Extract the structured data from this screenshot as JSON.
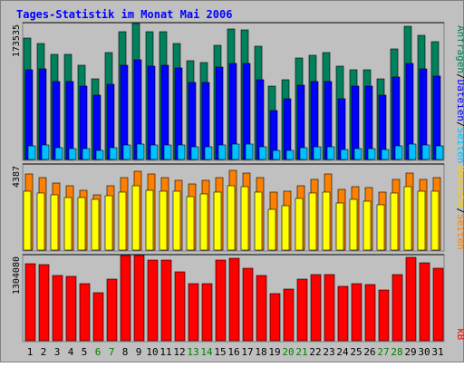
{
  "title": "Tages-Statistik im Monat Mai 2006",
  "colors": {
    "background": "#c0c0c0",
    "title": "#0000ff",
    "anfragen": "#00805c",
    "dateien": "#0000ff",
    "seiten": "#00c0ff",
    "besuche": "#ffff00",
    "seiten_mid": "#ff8000",
    "kb": "#ff0000",
    "weekend_label": "#008000"
  },
  "right_labels": {
    "top": [
      {
        "text": "Anfragen",
        "color": "#00805c"
      },
      {
        "text": "/",
        "color": "#000000"
      },
      {
        "text": "Dateien",
        "color": "#0000ff"
      },
      {
        "text": "/",
        "color": "#000000"
      },
      {
        "text": "Seiten",
        "color": "#00c0ff"
      }
    ],
    "middle": [
      {
        "text": "Besuche",
        "color": "#ffcc00"
      },
      {
        "text": "/",
        "color": "#000000"
      },
      {
        "text": "Seiten",
        "color": "#ff8000"
      }
    ],
    "bottom": [
      {
        "text": "kB",
        "color": "#ff0000"
      }
    ]
  },
  "chart_data": [
    {
      "type": "bar",
      "categories": [
        "1",
        "2",
        "3",
        "4",
        "5",
        "6",
        "7",
        "8",
        "9",
        "10",
        "11",
        "12",
        "13",
        "14",
        "15",
        "16",
        "17",
        "18",
        "19",
        "20",
        "21",
        "22",
        "23",
        "24",
        "25",
        "26",
        "27",
        "28",
        "29",
        "30",
        "31"
      ],
      "weekend_days": [
        6,
        7,
        13,
        14,
        20,
        21,
        27,
        28
      ],
      "ymax_label": "173535",
      "ylim": [
        0,
        173535
      ],
      "series": [
        {
          "name": "Anfragen",
          "values": [
            155000,
            148000,
            134000,
            134000,
            120000,
            103000,
            137000,
            163000,
            173535,
            163000,
            163000,
            148000,
            126000,
            124000,
            146000,
            167000,
            165000,
            145000,
            94000,
            102000,
            129000,
            133000,
            137000,
            119000,
            115000,
            115000,
            103000,
            141000,
            170000,
            159000,
            150000
          ]
        },
        {
          "name": "Dateien",
          "values": [
            115000,
            116000,
            100000,
            100000,
            94000,
            82000,
            96000,
            120000,
            127000,
            119000,
            120000,
            117000,
            98000,
            98000,
            118000,
            123000,
            123000,
            102000,
            63000,
            77000,
            95000,
            100000,
            100000,
            78000,
            94000,
            94000,
            82000,
            105000,
            123000,
            116000,
            107000
          ]
        },
        {
          "name": "Seiten",
          "values": [
            17000,
            18000,
            15000,
            14000,
            14000,
            12000,
            15000,
            19000,
            20000,
            19000,
            19000,
            18000,
            16000,
            16000,
            18000,
            20000,
            20000,
            16000,
            11000,
            12000,
            15000,
            16000,
            16000,
            13000,
            14000,
            14000,
            13000,
            17000,
            20000,
            19000,
            17000
          ]
        }
      ]
    },
    {
      "type": "bar",
      "categories": [
        "1",
        "2",
        "3",
        "4",
        "5",
        "6",
        "7",
        "8",
        "9",
        "10",
        "11",
        "12",
        "13",
        "14",
        "15",
        "16",
        "17",
        "18",
        "19",
        "20",
        "21",
        "22",
        "23",
        "24",
        "25",
        "26",
        "27",
        "28",
        "29",
        "30",
        "31"
      ],
      "ymax_label": "4387",
      "ylim": [
        0,
        4387
      ],
      "series": [
        {
          "name": "Seiten",
          "values": [
            3900,
            3750,
            3450,
            3300,
            3100,
            2850,
            3300,
            3750,
            4050,
            3900,
            3750,
            3600,
            3400,
            3600,
            3750,
            4100,
            3950,
            3750,
            3000,
            3050,
            3300,
            3650,
            3900,
            3150,
            3250,
            3200,
            3000,
            3650,
            3950,
            3650,
            3750
          ]
        },
        {
          "name": "Besuche",
          "values": [
            3050,
            2950,
            2850,
            2700,
            2700,
            2600,
            2800,
            3000,
            3300,
            3100,
            3050,
            3050,
            2750,
            2900,
            3000,
            3300,
            3250,
            3000,
            2100,
            2300,
            2650,
            2950,
            3000,
            2450,
            2600,
            2500,
            2350,
            2950,
            3250,
            3050,
            3050
          ]
        }
      ]
    },
    {
      "type": "bar",
      "categories": [
        "1",
        "2",
        "3",
        "4",
        "5",
        "6",
        "7",
        "8",
        "9",
        "10",
        "11",
        "12",
        "13",
        "14",
        "15",
        "16",
        "17",
        "18",
        "19",
        "20",
        "21",
        "22",
        "23",
        "24",
        "25",
        "26",
        "27",
        "28",
        "29",
        "30",
        "31"
      ],
      "ymax_label": "1304080",
      "ylim": [
        0,
        1304080
      ],
      "series": [
        {
          "name": "kB",
          "values": [
            1180000,
            1160000,
            1000000,
            990000,
            880000,
            740000,
            950000,
            1304080,
            1304080,
            1230000,
            1240000,
            1050000,
            880000,
            880000,
            1230000,
            1260000,
            1110000,
            1000000,
            720000,
            790000,
            950000,
            1010000,
            1010000,
            830000,
            870000,
            860000,
            780000,
            1010000,
            1280000,
            1190000,
            1110000
          ]
        }
      ]
    }
  ]
}
